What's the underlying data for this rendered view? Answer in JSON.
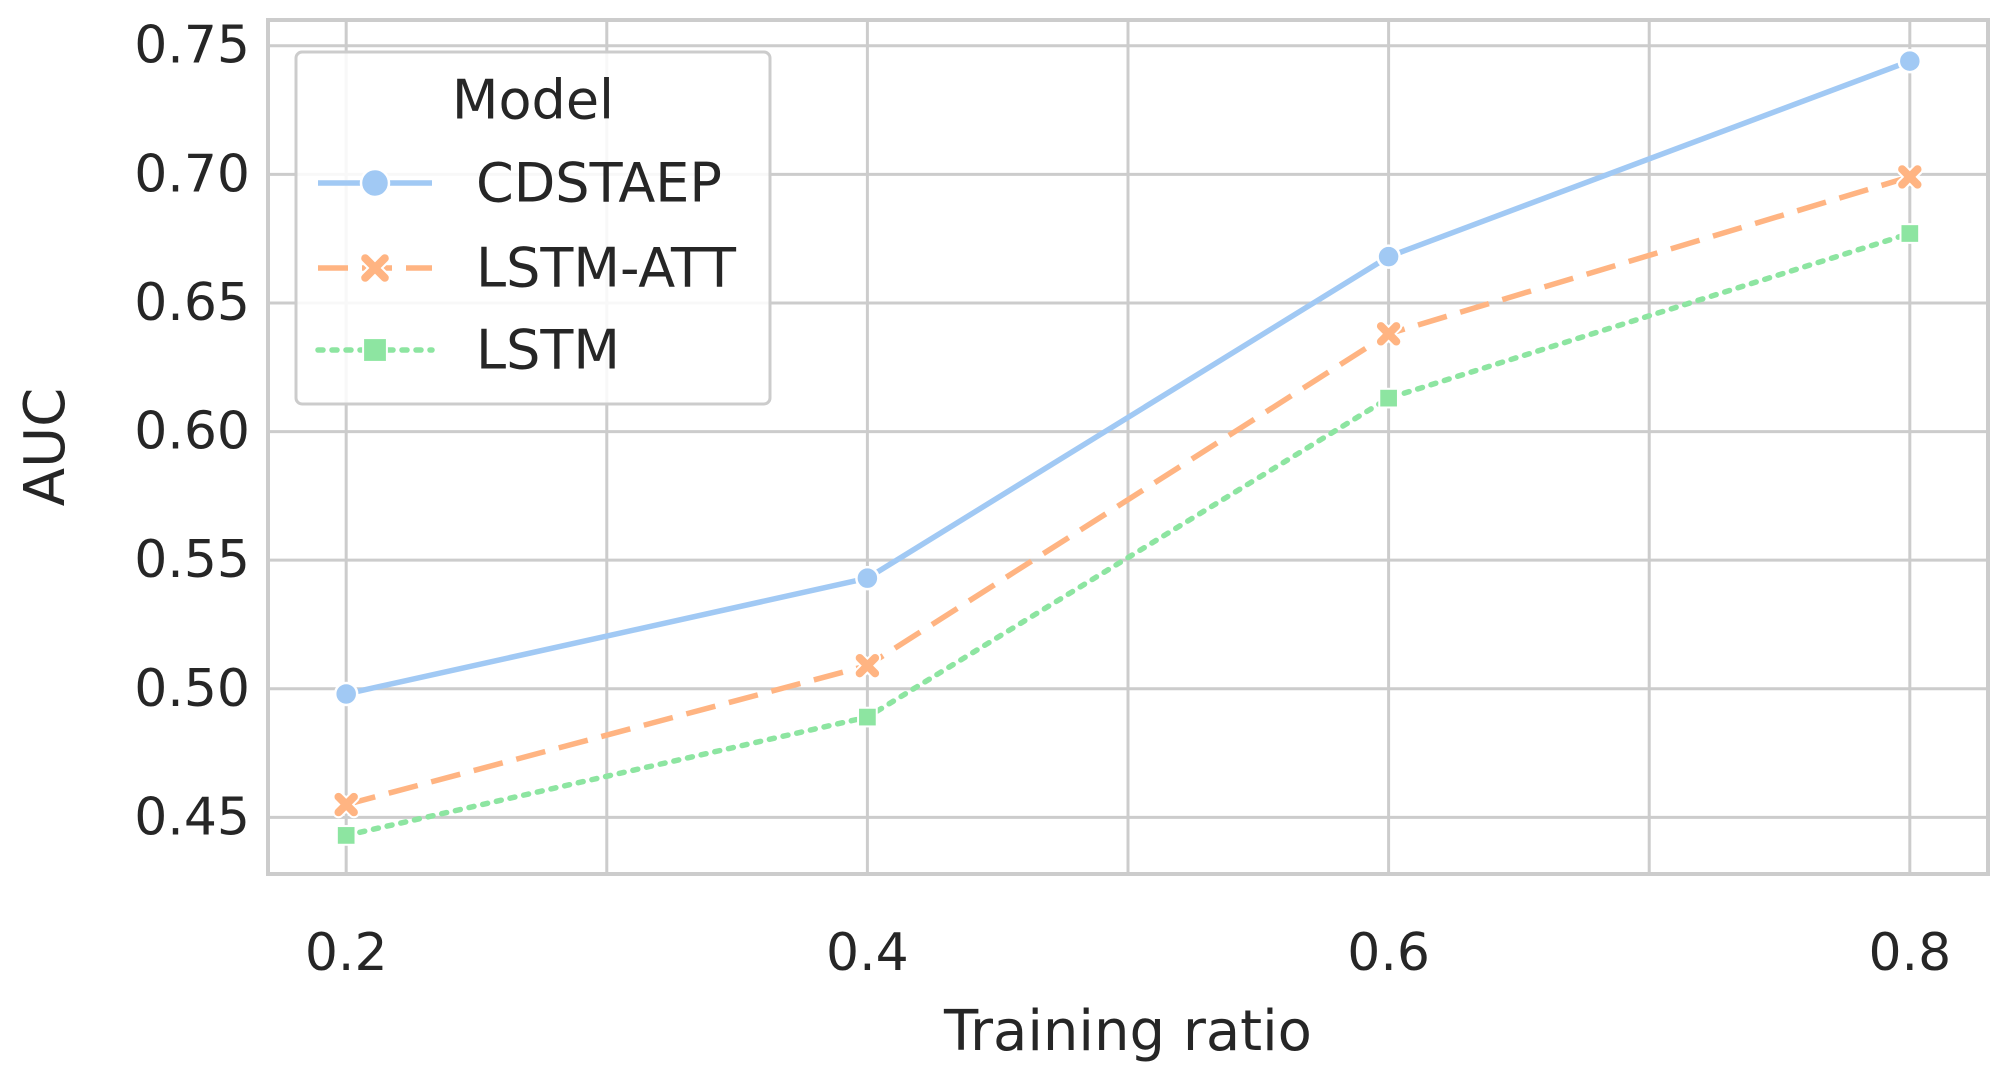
{
  "chart_data": {
    "type": "line",
    "title": "",
    "xlabel": "Training ratio",
    "ylabel": "AUC",
    "x": [
      0.2,
      0.4,
      0.6,
      0.8
    ],
    "xticks": [
      "0.2",
      "0.4",
      "0.6",
      "0.8"
    ],
    "xlim": [
      0.17,
      0.83
    ],
    "yticks": [
      "0.45",
      "0.50",
      "0.55",
      "0.60",
      "0.65",
      "0.70",
      "0.75"
    ],
    "ylim": [
      0.428,
      0.76
    ],
    "grid": true,
    "legend": {
      "title": "Model",
      "placement": "top-left"
    },
    "series": [
      {
        "name": "CDSTAEP",
        "values": [
          0.498,
          0.543,
          0.668,
          0.744
        ],
        "color": "#a1c9f4",
        "line_style": "solid",
        "marker": "circle"
      },
      {
        "name": "LSTM-ATT",
        "values": [
          0.455,
          0.509,
          0.638,
          0.699
        ],
        "color": "#ffb482",
        "line_style": "dashed",
        "marker": "x"
      },
      {
        "name": "LSTM",
        "values": [
          0.443,
          0.489,
          0.613,
          0.677
        ],
        "color": "#8de5a1",
        "line_style": "dotted",
        "marker": "square"
      }
    ]
  }
}
